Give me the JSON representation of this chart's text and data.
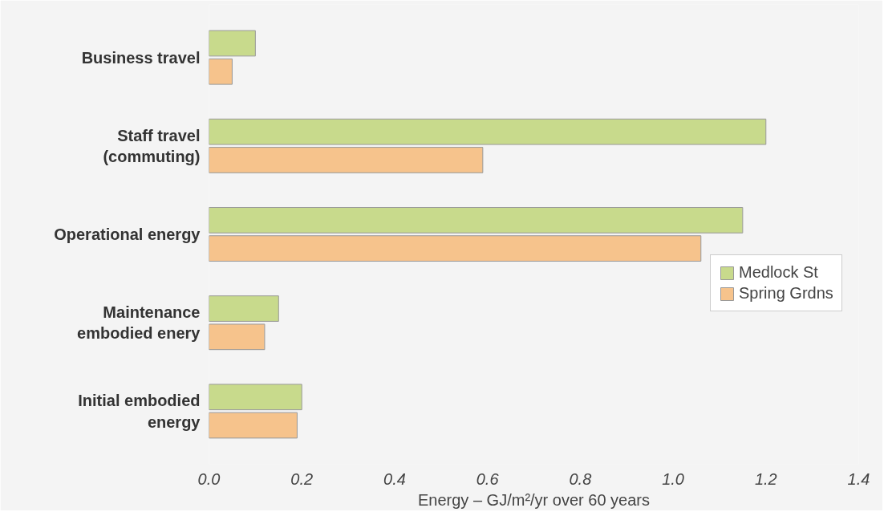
{
  "chart_data": {
    "type": "bar",
    "orientation": "horizontal",
    "xlabel": "Energy – GJ/m²/yr over 60 years",
    "categories": [
      "Business travel",
      "Staff travel\n(commuting)",
      "Operational energy",
      "Maintenance\nembodied enery",
      "Initial embodied\nenergy"
    ],
    "series": [
      {
        "name": "Medlock St",
        "color": "#c8da8c",
        "values": [
          0.1,
          1.2,
          1.15,
          0.15,
          0.2
        ]
      },
      {
        "name": "Spring Grdns",
        "color": "#f6c38c",
        "values": [
          0.05,
          0.59,
          1.06,
          0.12,
          0.19
        ]
      }
    ],
    "xlim": [
      0,
      1.4
    ],
    "xticks": [
      {
        "value": 0,
        "label": "0.0"
      },
      0.2,
      0.4,
      0.6,
      0.8,
      {
        "value": 1,
        "label": "1.0"
      },
      1.2,
      1.4
    ],
    "grid": false,
    "legend": "right"
  }
}
